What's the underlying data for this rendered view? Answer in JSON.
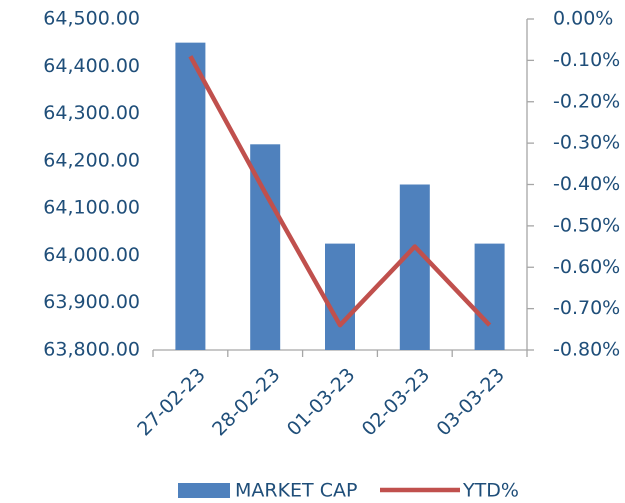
{
  "chart_data": {
    "type": "bar_line",
    "categories": [
      "27-02-23",
      "28-02-23",
      "01-03-23",
      "02-03-23",
      "03-03-23"
    ],
    "series": [
      {
        "name": "MARKET CAP",
        "color": "#4f81bd",
        "type": "bar",
        "values": [
          64450,
          64235,
          64025,
          64150,
          64025
        ]
      },
      {
        "name": "YTD%",
        "color": "#c0504d",
        "type": "line",
        "axis": "y2",
        "values": [
          -0.09,
          -0.42,
          -0.74,
          -0.55,
          -0.74
        ]
      }
    ],
    "ylim": [
      63800,
      64500
    ],
    "yticks": [
      {
        "value": 63800,
        "label": "63,800.00"
      },
      {
        "value": 63900,
        "label": "63,900.00"
      },
      {
        "value": 64000,
        "label": "64,000.00"
      },
      {
        "value": 64100,
        "label": "64,100.00"
      },
      {
        "value": 64200,
        "label": "64,200.00"
      },
      {
        "value": 64300,
        "label": "64,300.00"
      },
      {
        "value": 64400,
        "label": "64,400.00"
      },
      {
        "value": 64500,
        "label": "64,500.00"
      }
    ],
    "y2lim": [
      -0.8,
      0
    ],
    "y2ticks": [
      {
        "value": 0,
        "label": "0.00%"
      },
      {
        "value": -0.1,
        "label": "-0.10%"
      },
      {
        "value": -0.2,
        "label": "-0.20%"
      },
      {
        "value": -0.3,
        "label": "-0.30%"
      },
      {
        "value": -0.4,
        "label": "-0.40%"
      },
      {
        "value": -0.5,
        "label": "-0.50%"
      },
      {
        "value": -0.6,
        "label": "-0.60%"
      },
      {
        "value": -0.7,
        "label": "-0.70%"
      },
      {
        "value": -0.8,
        "label": "-0.80%"
      }
    ],
    "legend": "bottom"
  }
}
